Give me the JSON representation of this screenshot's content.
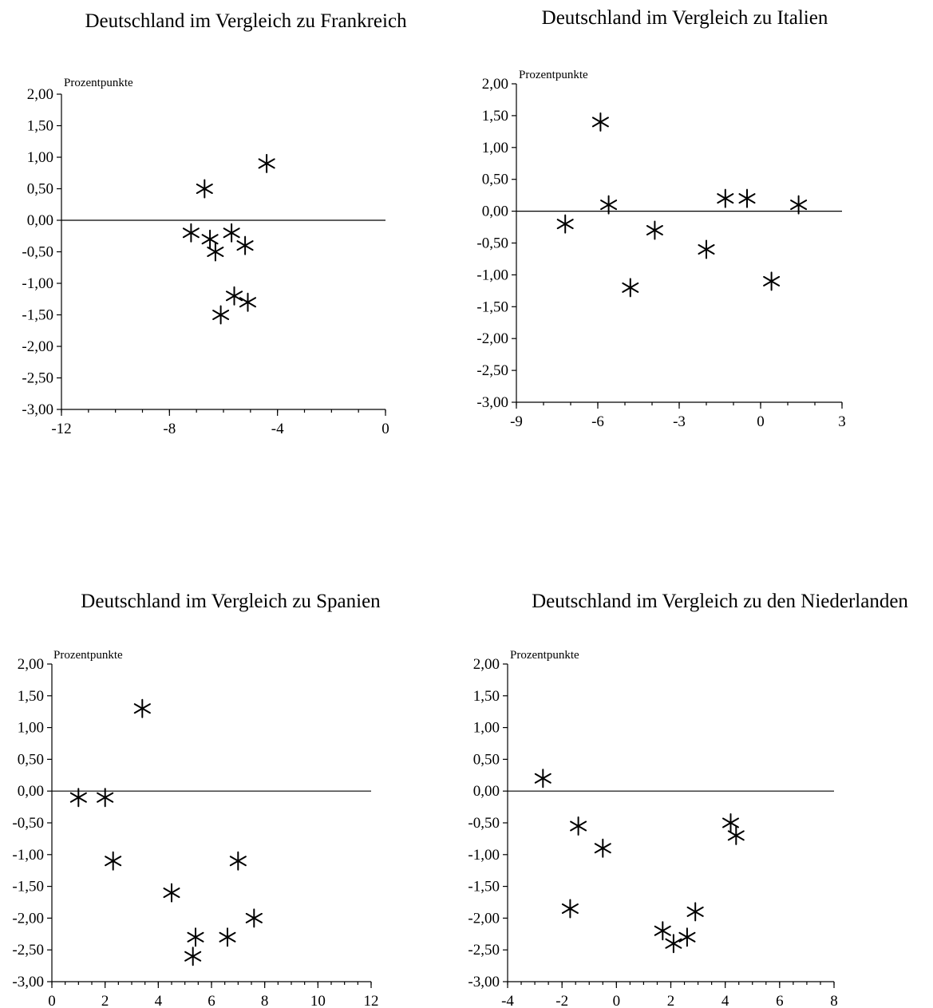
{
  "chart_data": [
    {
      "type": "scatter",
      "title": "Deutschland im Vergleich zu Frankreich",
      "ylabel": "Prozentpunkte",
      "xlim": [
        -12,
        0
      ],
      "ylim": [
        -3,
        2
      ],
      "x_ticks": [
        -12,
        -8,
        -4,
        0
      ],
      "x_tick_labels": [
        "-12",
        "-8",
        "-4",
        "0"
      ],
      "y_ticks": [
        2,
        1.5,
        1,
        0.5,
        0,
        -0.5,
        -1,
        -1.5,
        -2,
        -2.5,
        -3
      ],
      "y_tick_labels": [
        "2,00",
        "1,50",
        "1,00",
        "0,50",
        "0,00",
        "-0,50",
        "-1,00",
        "-1,50",
        "-2,00",
        "-2,50",
        "-3,00"
      ],
      "x_minor_step": 1,
      "zero_line": true,
      "marker": "asterisk",
      "points": [
        {
          "x": -4.4,
          "y": 0.9
        },
        {
          "x": -6.7,
          "y": 0.5
        },
        {
          "x": -7.2,
          "y": -0.2
        },
        {
          "x": -6.5,
          "y": -0.3
        },
        {
          "x": -6.3,
          "y": -0.5
        },
        {
          "x": -5.7,
          "y": -0.2
        },
        {
          "x": -5.2,
          "y": -0.4
        },
        {
          "x": -5.6,
          "y": -1.2
        },
        {
          "x": -5.1,
          "y": -1.3
        },
        {
          "x": -6.1,
          "y": -1.5
        }
      ]
    },
    {
      "type": "scatter",
      "title": "Deutschland im Vergleich zu Italien",
      "ylabel": "Prozentpunkte",
      "xlim": [
        -9,
        3
      ],
      "ylim": [
        -3,
        2
      ],
      "x_ticks": [
        -9,
        -6,
        -3,
        0,
        3
      ],
      "x_tick_labels": [
        "-9",
        "-6",
        "-3",
        "0",
        "3"
      ],
      "y_ticks": [
        2,
        1.5,
        1,
        0.5,
        0,
        -0.5,
        -1,
        -1.5,
        -2,
        -2.5,
        -3
      ],
      "y_tick_labels": [
        "2,00",
        "1,50",
        "1,00",
        "0,50",
        "0,00",
        "-0,50",
        "-1,00",
        "-1,50",
        "-2,00",
        "-2,50",
        "-3,00"
      ],
      "x_minor_step": 1,
      "zero_line": true,
      "marker": "asterisk",
      "points": [
        {
          "x": -7.2,
          "y": -0.2
        },
        {
          "x": -5.9,
          "y": 1.4
        },
        {
          "x": -5.6,
          "y": 0.1
        },
        {
          "x": -4.8,
          "y": -1.2
        },
        {
          "x": -3.9,
          "y": -0.3
        },
        {
          "x": -2.0,
          "y": -0.6
        },
        {
          "x": -1.3,
          "y": 0.2
        },
        {
          "x": -0.5,
          "y": 0.2
        },
        {
          "x": 0.4,
          "y": -1.1
        },
        {
          "x": 1.4,
          "y": 0.1
        }
      ]
    },
    {
      "type": "scatter",
      "title": "Deutschland im Vergleich zu Spanien",
      "ylabel": "Prozentpunkte",
      "xlim": [
        0,
        12
      ],
      "ylim": [
        -3,
        2
      ],
      "x_ticks": [
        0,
        2,
        4,
        6,
        8,
        10,
        12
      ],
      "x_tick_labels": [
        "0",
        "2",
        "4",
        "6",
        "8",
        "10",
        "12"
      ],
      "y_ticks": [
        2,
        1.5,
        1,
        0.5,
        0,
        -0.5,
        -1,
        -1.5,
        -2,
        -2.5,
        -3
      ],
      "y_tick_labels": [
        "2,00",
        "1,50",
        "1,00",
        "0,50",
        "0,00",
        "-0,50",
        "-1,00",
        "-1,50",
        "-2,00",
        "-2,50",
        "-3,00"
      ],
      "x_minor_step": 0.5,
      "zero_line": true,
      "marker": "asterisk",
      "points": [
        {
          "x": 1.0,
          "y": -0.1
        },
        {
          "x": 2.0,
          "y": -0.1
        },
        {
          "x": 3.4,
          "y": 1.3
        },
        {
          "x": 2.3,
          "y": -1.1
        },
        {
          "x": 4.5,
          "y": -1.6
        },
        {
          "x": 7.0,
          "y": -1.1
        },
        {
          "x": 7.6,
          "y": -2.0
        },
        {
          "x": 6.6,
          "y": -2.3
        },
        {
          "x": 5.4,
          "y": -2.3
        },
        {
          "x": 5.3,
          "y": -2.6
        }
      ]
    },
    {
      "type": "scatter",
      "title": "Deutschland im Vergleich zu den Niederlanden",
      "ylabel": "Prozentpunkte",
      "xlim": [
        -4,
        8
      ],
      "ylim": [
        -3,
        2
      ],
      "x_ticks": [
        -4,
        -2,
        0,
        2,
        4,
        6,
        8
      ],
      "x_tick_labels": [
        "-4",
        "-2",
        "0",
        "2",
        "4",
        "6",
        "8"
      ],
      "y_ticks": [
        2,
        1.5,
        1,
        0.5,
        0,
        -0.5,
        -1,
        -1.5,
        -2,
        -2.5,
        -3
      ],
      "y_tick_labels": [
        "2,00",
        "1,50",
        "1,00",
        "0,50",
        "0,00",
        "-0,50",
        "-1,00",
        "-1,50",
        "-2,00",
        "-2,50",
        "-3,00"
      ],
      "x_minor_step": 0.5,
      "zero_line": true,
      "marker": "asterisk",
      "points": [
        {
          "x": -2.7,
          "y": 0.2
        },
        {
          "x": -1.4,
          "y": -0.55
        },
        {
          "x": -0.5,
          "y": -0.9
        },
        {
          "x": -1.7,
          "y": -1.85
        },
        {
          "x": 1.7,
          "y": -2.2
        },
        {
          "x": 2.1,
          "y": -2.4
        },
        {
          "x": 2.6,
          "y": -2.3
        },
        {
          "x": 2.9,
          "y": -1.9
        },
        {
          "x": 4.2,
          "y": -0.5
        },
        {
          "x": 4.4,
          "y": -0.7
        }
      ]
    }
  ]
}
